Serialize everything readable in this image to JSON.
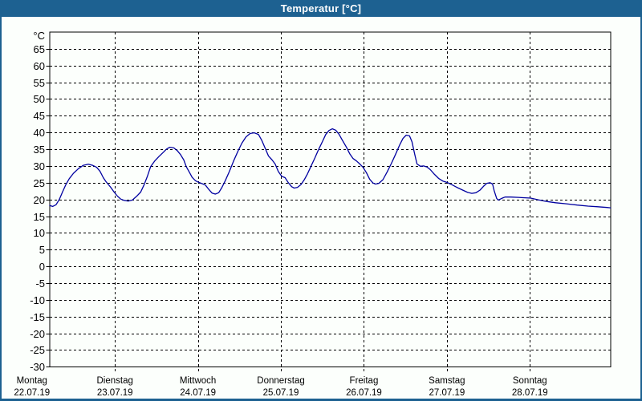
{
  "window": {
    "title": "Temperatur [°C]"
  },
  "colors": {
    "titlebar_bg": "#1d6191",
    "title_text": "#ffffff",
    "window_bg": "#fcfffc",
    "grid": "#000000",
    "axis": "#000000",
    "curve": "#0000a0",
    "label_text": "#000000"
  },
  "chart_data": {
    "type": "line",
    "title": "Temperatur [°C]",
    "y_unit_label": "°C",
    "ylim": [
      -30,
      70
    ],
    "ytick_min": -30,
    "ytick_max": 65,
    "ytick_step": 5,
    "grid": true,
    "legend": "none",
    "x_range_days": [
      0.215,
      6.97
    ],
    "x_axis_days": [
      {
        "name": "Montag",
        "date": "22.07.19",
        "t": 0
      },
      {
        "name": "Dienstag",
        "date": "23.07.19",
        "t": 1
      },
      {
        "name": "Mittwoch",
        "date": "24.07.19",
        "t": 2
      },
      {
        "name": "Donnerstag",
        "date": "25.07.19",
        "t": 3
      },
      {
        "name": "Freitag",
        "date": "26.07.19",
        "t": 4
      },
      {
        "name": "Samstag",
        "date": "27.07.19",
        "t": 5
      },
      {
        "name": "Sonntag",
        "date": "28.07.19",
        "t": 6
      }
    ],
    "series": [
      {
        "name": "Temperatur",
        "color": "#0000a0",
        "points_day_temp": [
          [
            0.215,
            18.2
          ],
          [
            0.25,
            17.9
          ],
          [
            0.29,
            18.4
          ],
          [
            0.33,
            20.0
          ],
          [
            0.37,
            22.3
          ],
          [
            0.41,
            24.5
          ],
          [
            0.45,
            26.2
          ],
          [
            0.5,
            27.8
          ],
          [
            0.56,
            29.2
          ],
          [
            0.62,
            30.2
          ],
          [
            0.68,
            30.5
          ],
          [
            0.73,
            30.2
          ],
          [
            0.78,
            29.6
          ],
          [
            0.82,
            28.4
          ],
          [
            0.86,
            26.5
          ],
          [
            0.89,
            25.4
          ],
          [
            0.92,
            24.5
          ],
          [
            0.95,
            23.6
          ],
          [
            0.99,
            22.2
          ],
          [
            1.03,
            21.0
          ],
          [
            1.07,
            20.1
          ],
          [
            1.11,
            19.7
          ],
          [
            1.16,
            19.5
          ],
          [
            1.21,
            19.8
          ],
          [
            1.26,
            20.9
          ],
          [
            1.31,
            22.2
          ],
          [
            1.35,
            24.3
          ],
          [
            1.39,
            26.8
          ],
          [
            1.43,
            29.8
          ],
          [
            1.48,
            31.5
          ],
          [
            1.53,
            32.8
          ],
          [
            1.58,
            34.0
          ],
          [
            1.62,
            35.0
          ],
          [
            1.66,
            35.6
          ],
          [
            1.71,
            35.4
          ],
          [
            1.75,
            34.6
          ],
          [
            1.79,
            33.4
          ],
          [
            1.83,
            31.8
          ],
          [
            1.86,
            29.8
          ],
          [
            1.9,
            28.0
          ],
          [
            1.93,
            26.6
          ],
          [
            1.97,
            25.6
          ],
          [
            2.01,
            25.1
          ],
          [
            2.05,
            24.7
          ],
          [
            2.09,
            24.3
          ],
          [
            2.13,
            23.0
          ],
          [
            2.17,
            21.9
          ],
          [
            2.21,
            21.6
          ],
          [
            2.25,
            22.0
          ],
          [
            2.29,
            23.6
          ],
          [
            2.33,
            25.6
          ],
          [
            2.38,
            28.4
          ],
          [
            2.43,
            31.5
          ],
          [
            2.48,
            34.3
          ],
          [
            2.53,
            36.8
          ],
          [
            2.58,
            38.7
          ],
          [
            2.63,
            39.7
          ],
          [
            2.68,
            39.9
          ],
          [
            2.73,
            39.4
          ],
          [
            2.77,
            37.6
          ],
          [
            2.81,
            35.3
          ],
          [
            2.85,
            33.0
          ],
          [
            2.89,
            31.9
          ],
          [
            2.93,
            30.6
          ],
          [
            2.97,
            28.3
          ],
          [
            3.01,
            26.9
          ],
          [
            3.05,
            26.5
          ],
          [
            3.09,
            25.0
          ],
          [
            3.13,
            23.8
          ],
          [
            3.16,
            23.4
          ],
          [
            3.2,
            23.6
          ],
          [
            3.24,
            24.4
          ],
          [
            3.28,
            25.8
          ],
          [
            3.32,
            27.6
          ],
          [
            3.36,
            29.8
          ],
          [
            3.41,
            32.4
          ],
          [
            3.45,
            34.7
          ],
          [
            3.5,
            37.3
          ],
          [
            3.54,
            39.4
          ],
          [
            3.58,
            40.6
          ],
          [
            3.62,
            41.1
          ],
          [
            3.66,
            40.7
          ],
          [
            3.7,
            39.5
          ],
          [
            3.74,
            37.7
          ],
          [
            3.79,
            35.6
          ],
          [
            3.83,
            33.6
          ],
          [
            3.87,
            32.2
          ],
          [
            3.91,
            31.5
          ],
          [
            3.95,
            30.6
          ],
          [
            3.99,
            29.6
          ],
          [
            4.03,
            28.0
          ],
          [
            4.07,
            26.0
          ],
          [
            4.11,
            24.9
          ],
          [
            4.14,
            24.6
          ],
          [
            4.18,
            24.8
          ],
          [
            4.23,
            25.9
          ],
          [
            4.28,
            28.2
          ],
          [
            4.33,
            30.7
          ],
          [
            4.38,
            33.4
          ],
          [
            4.43,
            36.2
          ],
          [
            4.47,
            38.2
          ],
          [
            4.51,
            39.2
          ],
          [
            4.55,
            39.0
          ],
          [
            4.58,
            37.2
          ],
          [
            4.61,
            33.8
          ],
          [
            4.64,
            30.6
          ],
          [
            4.68,
            29.9
          ],
          [
            4.72,
            30.0
          ],
          [
            4.76,
            29.7
          ],
          [
            4.8,
            28.9
          ],
          [
            4.85,
            27.5
          ],
          [
            4.9,
            26.3
          ],
          [
            4.95,
            25.5
          ],
          [
            5.0,
            25.1
          ],
          [
            5.06,
            24.4
          ],
          [
            5.12,
            23.6
          ],
          [
            5.19,
            22.8
          ],
          [
            5.25,
            22.1
          ],
          [
            5.3,
            21.8
          ],
          [
            5.35,
            22.0
          ],
          [
            5.4,
            22.8
          ],
          [
            5.44,
            23.9
          ],
          [
            5.48,
            24.8
          ],
          [
            5.52,
            25.0
          ],
          [
            5.55,
            24.6
          ],
          [
            5.57,
            22.6
          ],
          [
            5.6,
            20.3
          ],
          [
            5.62,
            19.8
          ],
          [
            5.66,
            20.3
          ],
          [
            5.7,
            20.7
          ],
          [
            5.77,
            20.7
          ],
          [
            5.86,
            20.6
          ],
          [
            5.94,
            20.5
          ],
          [
            6.01,
            20.4
          ],
          [
            6.1,
            19.9
          ],
          [
            6.2,
            19.4
          ],
          [
            6.31,
            19.0
          ],
          [
            6.44,
            18.7
          ],
          [
            6.57,
            18.3
          ],
          [
            6.7,
            18.0
          ],
          [
            6.82,
            17.8
          ],
          [
            6.93,
            17.6
          ],
          [
            6.97,
            17.5
          ]
        ]
      }
    ]
  }
}
